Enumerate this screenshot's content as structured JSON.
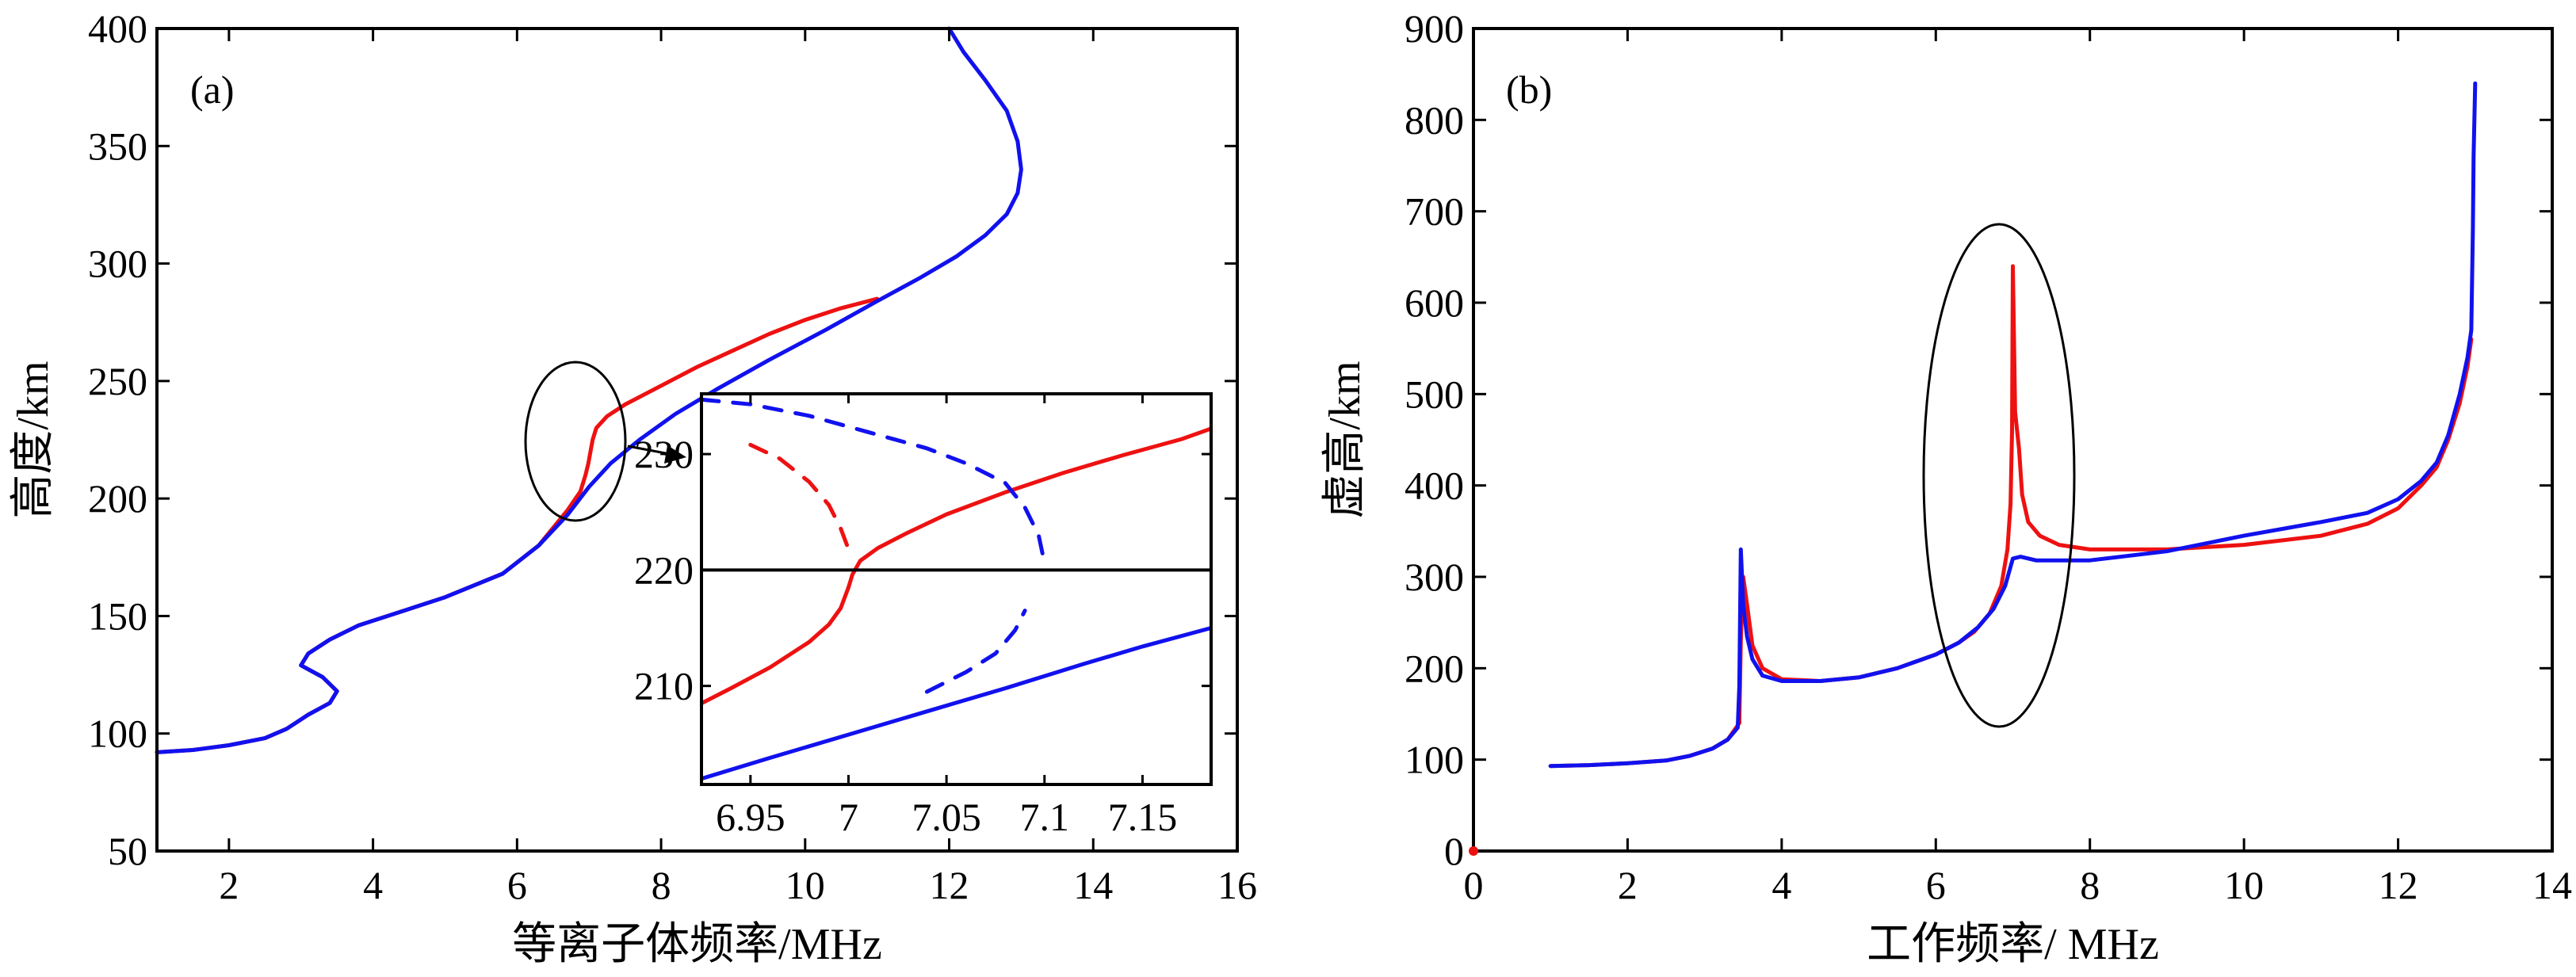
{
  "colors": {
    "red": "#ee1111",
    "blue": "#1111ee",
    "axis": "#000000"
  },
  "chart_data": [
    {
      "id": "a",
      "type": "line",
      "panel_label": "(a)",
      "xlabel": "等离子体频率/MHz",
      "ylabel": "高度/km",
      "xlim": [
        1,
        16
      ],
      "ylim": [
        50,
        400
      ],
      "xticks": [
        2,
        4,
        6,
        8,
        10,
        12,
        14,
        16
      ],
      "yticks": [
        50,
        100,
        150,
        200,
        250,
        300,
        350,
        400
      ],
      "series": [
        {
          "name": "red",
          "color": "red",
          "style": "solid",
          "points": [
            [
              1,
              92
            ],
            [
              1.5,
              93
            ],
            [
              2,
              95
            ],
            [
              2.5,
              98
            ],
            [
              2.8,
              102
            ],
            [
              3.1,
              108
            ],
            [
              3.4,
              113
            ],
            [
              3.5,
              118
            ],
            [
              3.3,
              124
            ],
            [
              3,
              129
            ],
            [
              3.1,
              134
            ],
            [
              3.4,
              140
            ],
            [
              3.8,
              146
            ],
            [
              4.3,
              151
            ],
            [
              5,
              158
            ],
            [
              5.8,
              168
            ],
            [
              6.3,
              180
            ],
            [
              6.7,
              195
            ],
            [
              6.88,
              203
            ],
            [
              6.95,
              210
            ],
            [
              6.99,
              215
            ],
            [
              7.05,
              225
            ],
            [
              7.1,
              230
            ],
            [
              7.25,
              235
            ],
            [
              7.5,
              240
            ],
            [
              8,
              248
            ],
            [
              8.5,
              256
            ],
            [
              9,
              263
            ],
            [
              9.5,
              270
            ],
            [
              10,
              276
            ],
            [
              10.5,
              281
            ],
            [
              11,
              285
            ]
          ]
        },
        {
          "name": "blue",
          "color": "blue",
          "style": "solid",
          "points": [
            [
              1,
              92
            ],
            [
              1.5,
              93
            ],
            [
              2,
              95
            ],
            [
              2.5,
              98
            ],
            [
              2.8,
              102
            ],
            [
              3.1,
              108
            ],
            [
              3.4,
              113
            ],
            [
              3.5,
              118
            ],
            [
              3.3,
              124
            ],
            [
              3,
              129
            ],
            [
              3.1,
              134
            ],
            [
              3.4,
              140
            ],
            [
              3.8,
              146
            ],
            [
              4.3,
              151
            ],
            [
              5,
              158
            ],
            [
              5.8,
              168
            ],
            [
              6.3,
              180
            ],
            [
              6.7,
              193
            ],
            [
              7,
              205
            ],
            [
              7.3,
              215
            ],
            [
              7.7,
              225
            ],
            [
              8.2,
              236
            ],
            [
              8.8,
              247
            ],
            [
              9.5,
              259
            ],
            [
              10.3,
              272
            ],
            [
              11,
              284
            ],
            [
              11.6,
              294
            ],
            [
              12.1,
              303
            ],
            [
              12.5,
              312
            ],
            [
              12.8,
              321
            ],
            [
              12.95,
              330
            ],
            [
              13,
              340
            ],
            [
              12.95,
              352
            ],
            [
              12.8,
              365
            ],
            [
              12.5,
              378
            ],
            [
              12.2,
              390
            ],
            [
              12,
              400
            ]
          ]
        }
      ],
      "inset": {
        "xlim": [
          6.925,
          7.185
        ],
        "ylim": [
          201.5,
          235.2
        ],
        "xticks": [
          6.95,
          7,
          7.05,
          7.1,
          7.15
        ],
        "xtick_labels": [
          "6.95",
          "7",
          "7.05",
          "7.1",
          "7.15"
        ],
        "yticks": [
          210,
          220,
          230
        ],
        "hline": 220,
        "series": [
          {
            "name": "red",
            "color": "red",
            "style": "solid",
            "points": [
              [
                6.925,
                208.5
              ],
              [
                6.94,
                209.8
              ],
              [
                6.96,
                211.6
              ],
              [
                6.98,
                213.8
              ],
              [
                6.99,
                215.3
              ],
              [
                6.996,
                216.7
              ],
              [
                7,
                218.5
              ],
              [
                7.002,
                219.6
              ],
              [
                7.006,
                220.8
              ],
              [
                7.015,
                221.9
              ],
              [
                7.03,
                223.2
              ],
              [
                7.05,
                224.8
              ],
              [
                7.08,
                226.7
              ],
              [
                7.11,
                228.4
              ],
              [
                7.14,
                229.9
              ],
              [
                7.17,
                231.3
              ],
              [
                7.185,
                232.2
              ]
            ]
          },
          {
            "name": "red-dashed",
            "color": "red",
            "style": "dashed",
            "points": [
              [
                6.95,
                230.8
              ],
              [
                6.965,
                229.6
              ],
              [
                6.98,
                227.6
              ],
              [
                6.99,
                225.6
              ],
              [
                6.996,
                223.6
              ],
              [
                7,
                221.8
              ]
            ]
          },
          {
            "name": "blue",
            "color": "blue",
            "style": "solid",
            "points": [
              [
                6.925,
                202
              ],
              [
                6.96,
                203.8
              ],
              [
                7,
                205.8
              ],
              [
                7.04,
                207.8
              ],
              [
                7.08,
                209.8
              ],
              [
                7.12,
                211.9
              ],
              [
                7.15,
                213.4
              ],
              [
                7.185,
                215
              ]
            ]
          },
          {
            "name": "blue-dashed-top",
            "color": "blue",
            "style": "dashed",
            "points": [
              [
                6.925,
                234.7
              ],
              [
                6.95,
                234.3
              ],
              [
                6.98,
                233.3
              ],
              [
                7.01,
                231.9
              ],
              [
                7.04,
                230.5
              ],
              [
                7.06,
                229.2
              ],
              [
                7.08,
                227.5
              ],
              [
                7.09,
                225.4
              ],
              [
                7.097,
                223
              ],
              [
                7.1,
                220.6
              ]
            ]
          },
          {
            "name": "blue-dashed-bottom",
            "color": "blue",
            "style": "dashed",
            "points": [
              [
                7.04,
                209.5
              ],
              [
                7.06,
                211.2
              ],
              [
                7.075,
                212.8
              ],
              [
                7.085,
                214.8
              ],
              [
                7.09,
                216.5
              ]
            ]
          }
        ]
      }
    },
    {
      "id": "b",
      "type": "line",
      "panel_label": "(b)",
      "xlabel": "工作频率/ MHz",
      "ylabel": "虚高/km",
      "xlim": [
        0,
        14
      ],
      "ylim": [
        0,
        900
      ],
      "xticks": [
        0,
        2,
        4,
        6,
        8,
        10,
        12,
        14
      ],
      "yticks": [
        0,
        100,
        200,
        300,
        400,
        500,
        600,
        700,
        800,
        900
      ],
      "series": [
        {
          "name": "red",
          "color": "red",
          "style": "solid",
          "points": [
            [
              1,
              93
            ],
            [
              1.5,
              94
            ],
            [
              2,
              96
            ],
            [
              2.5,
              99
            ],
            [
              2.8,
              104
            ],
            [
              3.1,
              112
            ],
            [
              3.3,
              122
            ],
            [
              3.45,
              140
            ],
            [
              3.47,
              230
            ],
            [
              3.5,
              300
            ],
            [
              3.55,
              270
            ],
            [
              3.62,
              225
            ],
            [
              3.75,
              200
            ],
            [
              4,
              188
            ],
            [
              4.5,
              186
            ],
            [
              5,
              190
            ],
            [
              5.5,
              200
            ],
            [
              6,
              215
            ],
            [
              6.3,
              228
            ],
            [
              6.5,
              240
            ],
            [
              6.7,
              260
            ],
            [
              6.85,
              290
            ],
            [
              6.93,
              330
            ],
            [
              6.97,
              380
            ],
            [
              6.99,
              460
            ],
            [
              7,
              640
            ],
            [
              7.03,
              480
            ],
            [
              7.08,
              440
            ],
            [
              7.12,
              390
            ],
            [
              7.2,
              360
            ],
            [
              7.35,
              345
            ],
            [
              7.6,
              335
            ],
            [
              8,
              330
            ],
            [
              9,
              330
            ],
            [
              10,
              335
            ],
            [
              11,
              345
            ],
            [
              11.6,
              358
            ],
            [
              12,
              375
            ],
            [
              12.3,
              400
            ],
            [
              12.5,
              420
            ],
            [
              12.65,
              450
            ],
            [
              12.8,
              490
            ],
            [
              12.9,
              530
            ],
            [
              12.95,
              560
            ]
          ]
        },
        {
          "name": "blue",
          "color": "blue",
          "style": "solid",
          "points": [
            [
              1,
              93
            ],
            [
              1.5,
              94
            ],
            [
              2,
              96
            ],
            [
              2.5,
              99
            ],
            [
              2.8,
              104
            ],
            [
              3.1,
              112
            ],
            [
              3.3,
              122
            ],
            [
              3.43,
              135
            ],
            [
              3.45,
              180
            ],
            [
              3.47,
              330
            ],
            [
              3.5,
              270
            ],
            [
              3.55,
              235
            ],
            [
              3.62,
              210
            ],
            [
              3.75,
              192
            ],
            [
              4,
              186
            ],
            [
              4.5,
              186
            ],
            [
              5,
              190
            ],
            [
              5.5,
              200
            ],
            [
              6,
              215
            ],
            [
              6.3,
              228
            ],
            [
              6.55,
              245
            ],
            [
              6.75,
              265
            ],
            [
              6.9,
              290
            ],
            [
              7,
              320
            ],
            [
              7.1,
              322
            ],
            [
              7.3,
              318
            ],
            [
              8,
              318
            ],
            [
              9,
              328
            ],
            [
              10,
              345
            ],
            [
              11,
              360
            ],
            [
              11.6,
              370
            ],
            [
              12,
              385
            ],
            [
              12.3,
              405
            ],
            [
              12.5,
              425
            ],
            [
              12.65,
              455
            ],
            [
              12.8,
              500
            ],
            [
              12.9,
              540
            ],
            [
              12.95,
              570
            ],
            [
              12.97,
              680
            ],
            [
              12.98,
              760
            ],
            [
              13,
              840
            ]
          ]
        }
      ]
    }
  ]
}
